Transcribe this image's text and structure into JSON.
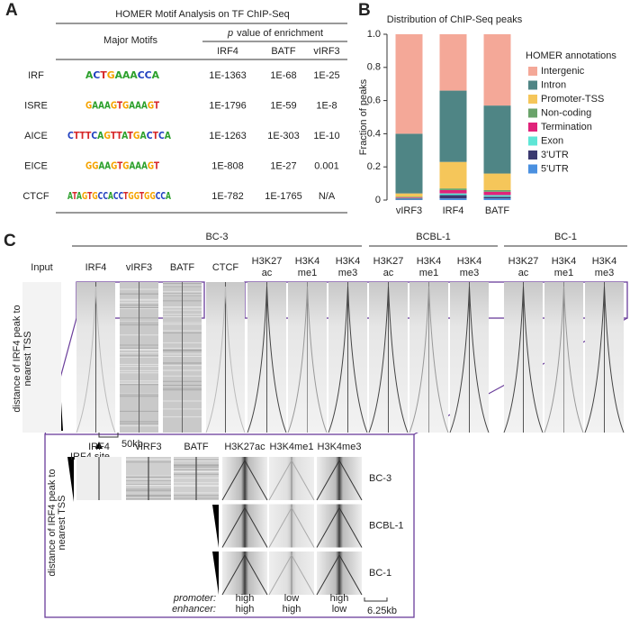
{
  "panel_labels": [
    "A",
    "B",
    "C"
  ],
  "panel_a": {
    "title": "HOMER Motif Analysis on TF ChIP-Seq",
    "motif_header": "Major Motifs",
    "pvalue_header": {
      "italic": "p",
      "rest": "value of enrichment"
    },
    "columns": [
      "IRF4",
      "BATF",
      "vIRF3"
    ],
    "rows": [
      {
        "name": "IRF",
        "logo": "ACTGAAACCA",
        "values": [
          "1E-1363",
          "1E-68",
          "1E-25"
        ]
      },
      {
        "name": "ISRE",
        "logo": "GAAAGTGAAAGT",
        "values": [
          "1E-1796",
          "1E-59",
          "1E-8"
        ]
      },
      {
        "name": "AICE",
        "logo": "CTTTCAGTTATGACTCA",
        "values": [
          "1E-1263",
          "1E-303",
          "1E-10"
        ]
      },
      {
        "name": "EICE",
        "logo": "GGAAGTGAAAGT",
        "values": [
          "1E-808",
          "1E-27",
          "0.001"
        ]
      },
      {
        "name": "CTCF",
        "logo": "ATAGTGCCACCTGGTGGCCA",
        "values": [
          "1E-782",
          "1E-1765",
          "N/A"
        ]
      }
    ]
  },
  "chart_data": {
    "type": "stacked_bar",
    "title": "Distribution of ChIP-Seq peaks",
    "y_label": "Fraction of peaks",
    "legend_title": "HOMER annotations",
    "legend": "right",
    "categories": [
      "vIRF3",
      "IRF4",
      "BATF"
    ],
    "series": [
      {
        "name": "5'UTR",
        "color": "#4a90e0",
        "values": [
          0.004,
          0.01,
          0.01
        ]
      },
      {
        "name": "3'UTR",
        "color": "#3b3a70",
        "values": [
          0.004,
          0.02,
          0.01
        ]
      },
      {
        "name": "Exon",
        "color": "#5ee6d6",
        "values": [
          0.004,
          0.01,
          0.01
        ]
      },
      {
        "name": "Termination",
        "color": "#e0237a",
        "values": [
          0.004,
          0.02,
          0.02
        ]
      },
      {
        "name": "Non-coding",
        "color": "#6aa36a",
        "values": [
          0.004,
          0.01,
          0.01
        ]
      },
      {
        "name": "Promoter-TSS",
        "color": "#f5c65a",
        "values": [
          0.02,
          0.16,
          0.1
        ]
      },
      {
        "name": "Intron",
        "color": "#4f8585",
        "values": [
          0.36,
          0.43,
          0.41
        ]
      },
      {
        "name": "Intergenic",
        "color": "#f4a898",
        "values": [
          0.6,
          0.34,
          0.43
        ]
      }
    ],
    "ylim": [
      0,
      1
    ],
    "yticks": [
      0,
      0.2,
      0.4,
      0.6,
      0.8,
      {
        "value": 1,
        "label": "1.0"
      }
    ]
  },
  "panel_c": {
    "groups": [
      "BC-3",
      "BCBL-1",
      "BC-1"
    ],
    "columns": [
      [
        "Input"
      ],
      [
        "IRF4"
      ],
      [
        "vIRF3"
      ],
      [
        "BATF"
      ],
      [
        "CTCF"
      ],
      [
        "H3K27",
        "ac"
      ],
      [
        "H3K4",
        "me1"
      ],
      [
        "H3K4",
        "me3"
      ],
      [
        "H3K27",
        "ac"
      ],
      [
        "H3K4",
        "me1"
      ],
      [
        "H3K4",
        "me3"
      ],
      [
        "H3K27",
        "ac"
      ],
      [
        "H3K4",
        "me1"
      ],
      [
        "H3K4",
        "me3"
      ]
    ],
    "y_label": [
      "distance of IRF4 peak to",
      "nearest TSS"
    ],
    "scale": "50kb",
    "site": "IRF4 site",
    "zoom": {
      "columns": [
        "IRF4",
        "vIRF3",
        "BATF",
        "H3K27ac",
        "H3K4me1",
        "H3K4me3"
      ],
      "rows": [
        "BC-3",
        "BCBL-1",
        "BC-1"
      ],
      "y_label": [
        "distance of IRF4 peak to",
        "nearest TSS"
      ],
      "promoter": "promoter:",
      "enhancer": "enhancer:",
      "levels": [
        [
          "high",
          "high"
        ],
        [
          "low",
          "high"
        ],
        [
          "high",
          "low"
        ]
      ],
      "scale": "6.25kb"
    }
  }
}
